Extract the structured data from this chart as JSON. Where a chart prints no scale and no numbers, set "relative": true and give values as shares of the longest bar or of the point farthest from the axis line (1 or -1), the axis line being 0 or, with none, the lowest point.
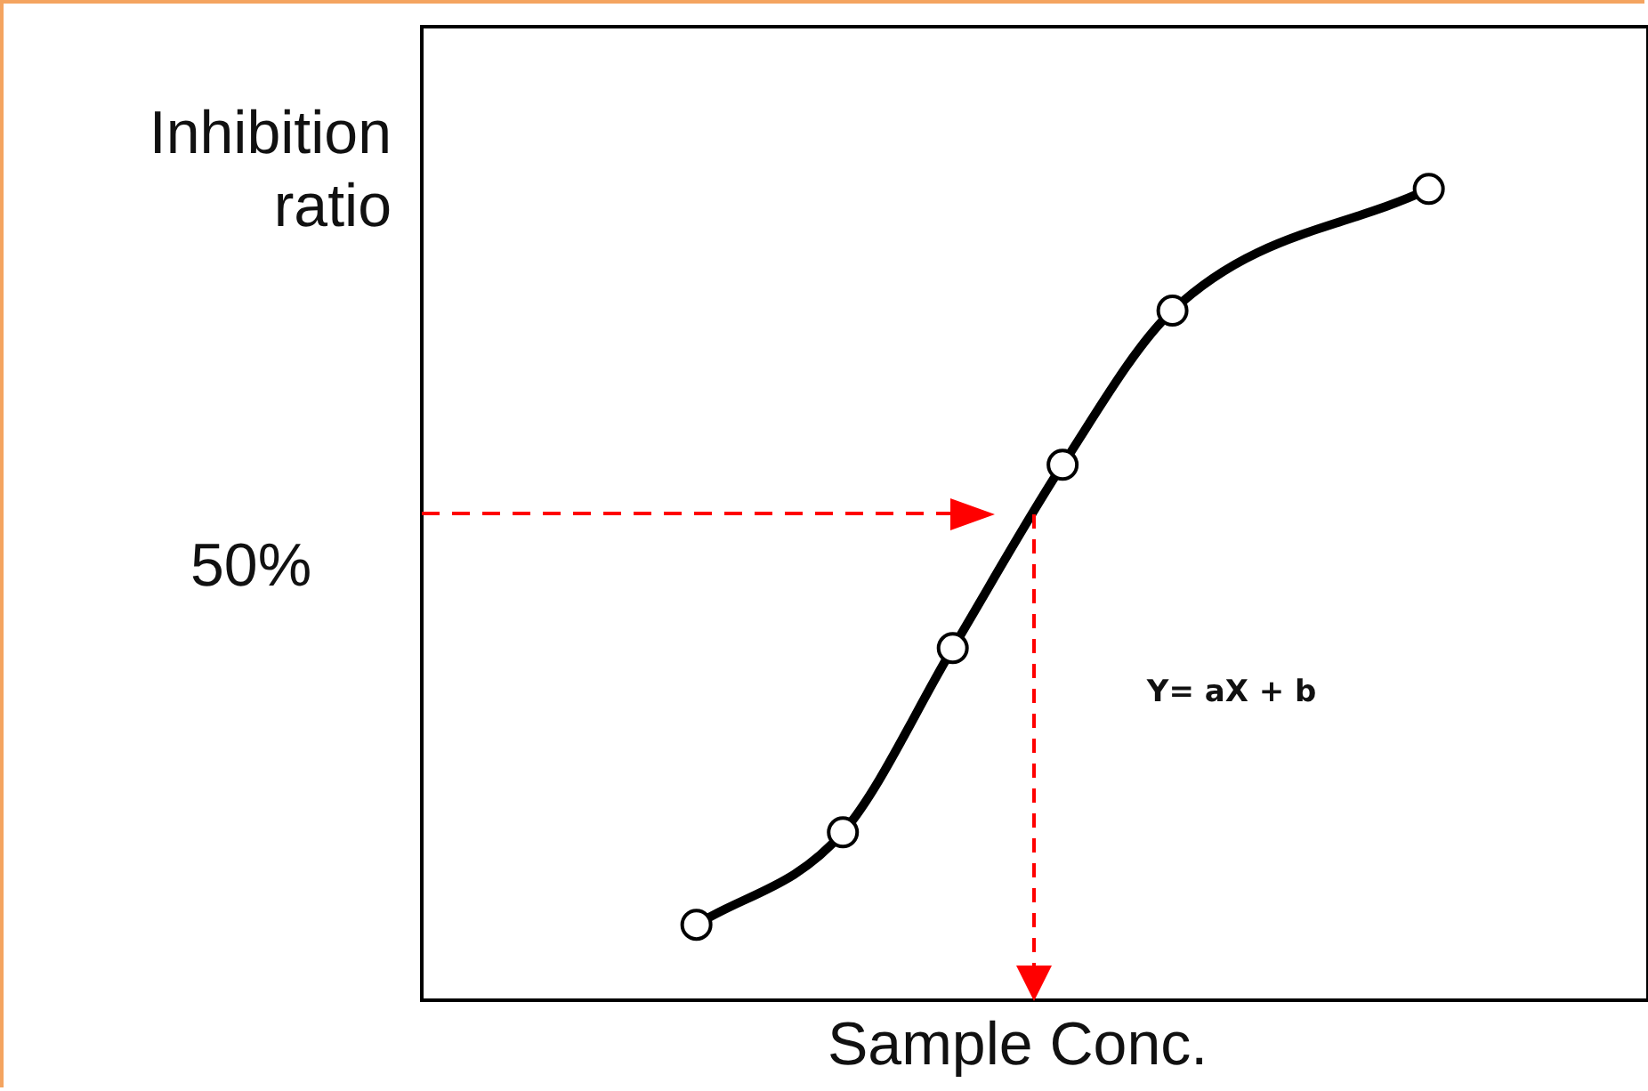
{
  "chart_data": {
    "type": "line",
    "relative": true,
    "xlabel": "Sample Conc.",
    "ylabel": "Inhibition ratio",
    "categories": [
      null,
      null,
      null,
      null,
      null,
      null,
      null,
      null,
      null,
      null,
      null,
      null,
      null,
      null,
      null,
      null,
      null,
      null,
      null,
      null,
      null,
      null,
      null,
      null,
      null,
      null,
      null,
      null,
      null,
      null,
      null,
      null,
      null
    ],
    "series": [
      {
        "color": "#000000",
        "values": [
          null,
          null,
          null,
          null,
          null,
          null,
          null,
          0.093,
          null,
          null,
          null,
          0.207,
          null,
          null,
          0.434,
          null,
          null,
          0.66,
          null,
          null,
          0.85,
          null,
          null,
          null,
          null,
          null,
          null,
          1,
          null,
          null,
          null,
          null,
          null
        ]
      }
    ],
    "marker": "circle",
    "line_style": "solid",
    "legend": false,
    "ref_lines": [
      {
        "axis": "y",
        "value": 0.6,
        "color": "#ff0000",
        "line_style": "dashed"
      }
    ],
    "annotations": [
      "50%",
      "Y= aX + b"
    ]
  }
}
